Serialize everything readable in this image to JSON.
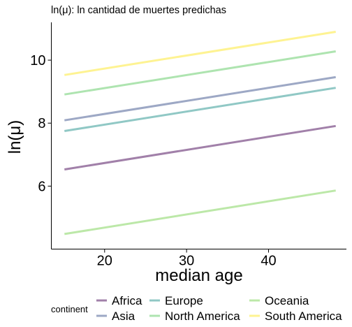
{
  "chart_data": {
    "type": "line",
    "title": "ln(μ): ln cantidad de muertes predichas",
    "xlabel": "median age",
    "ylabel": "ln(μ)",
    "xlim": [
      13.5,
      49.5
    ],
    "ylim": [
      4.0,
      11.2
    ],
    "x_ticks": [
      20,
      30,
      40
    ],
    "y_ticks": [
      6,
      8,
      10
    ],
    "grid": false,
    "legend": {
      "title": "continent",
      "position": "bottom"
    },
    "series": [
      {
        "name": "Africa",
        "color": "#440154",
        "x": [
          15.1,
          48.2
        ],
        "y": [
          6.53,
          7.91
        ]
      },
      {
        "name": "Asia",
        "color": "#3b528b",
        "x": [
          15.1,
          48.2
        ],
        "y": [
          8.09,
          9.46
        ]
      },
      {
        "name": "Europe",
        "color": "#21918c",
        "x": [
          15.1,
          48.2
        ],
        "y": [
          7.75,
          9.12
        ]
      },
      {
        "name": "North America",
        "color": "#5ec962",
        "x": [
          15.1,
          48.2
        ],
        "y": [
          8.91,
          10.28
        ]
      },
      {
        "name": "Oceania",
        "color": "#7ad151",
        "x": [
          15.1,
          48.2
        ],
        "y": [
          4.48,
          5.86
        ]
      },
      {
        "name": "South America",
        "color": "#fde725",
        "x": [
          15.1,
          48.2
        ],
        "y": [
          9.53,
          10.9
        ]
      }
    ]
  }
}
